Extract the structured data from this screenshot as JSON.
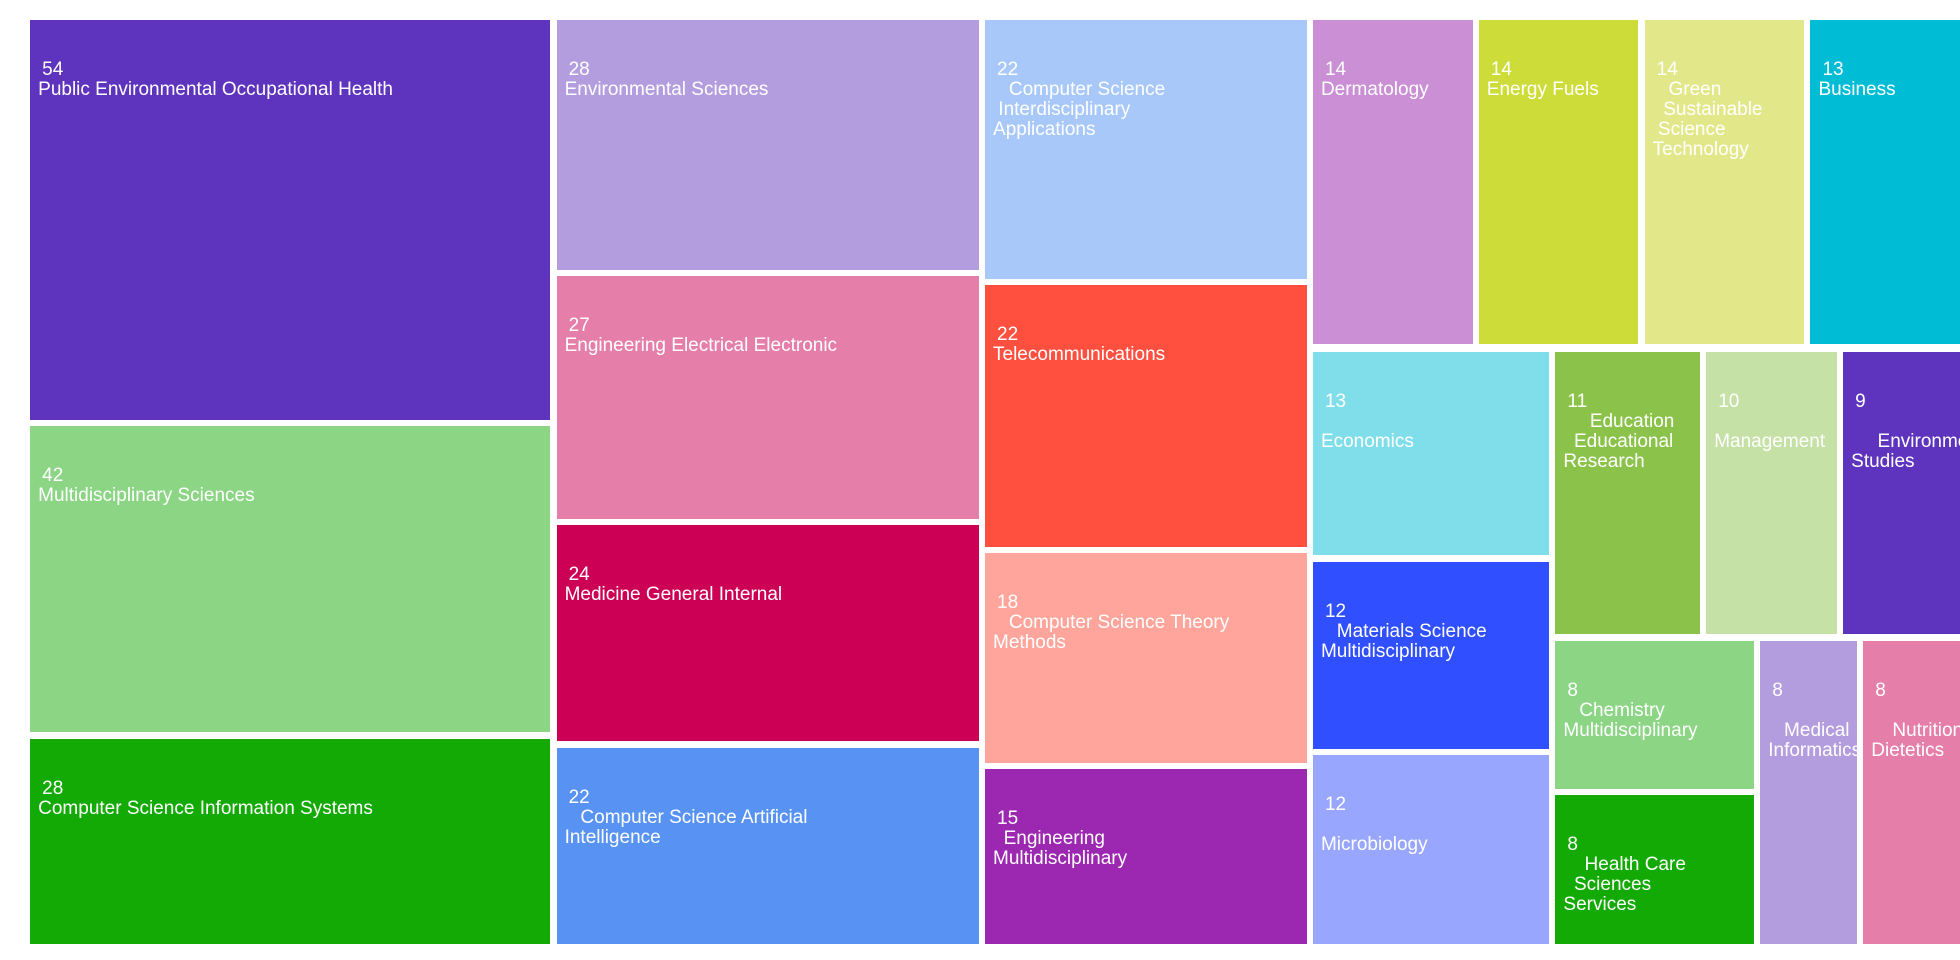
{
  "chart_data": {
    "type": "treemap",
    "title": "",
    "items": [
      {
        "label": "Public Environmental Occupational Health",
        "value": 54,
        "color": "#5e33be"
      },
      {
        "label": "Multidisciplinary Sciences",
        "value": 42,
        "color": "#8bd585"
      },
      {
        "label": "Computer Science Information Systems",
        "value": 28,
        "color": "#14aa05"
      },
      {
        "label": "Environmental Sciences",
        "value": 28,
        "color": "#b39ddf"
      },
      {
        "label": "Engineering Electrical Electronic",
        "value": 27,
        "color": "#e57ea8"
      },
      {
        "label": "Medicine General Internal",
        "value": 24,
        "color": "#cc0055"
      },
      {
        "label": "Computer Science Artificial Intelligence",
        "value": 22,
        "color": "#5893f3"
      },
      {
        "label": "Computer Science Interdisciplinary Applications",
        "value": 22,
        "color": "#a8c8fa"
      },
      {
        "label": "Telecommunications",
        "value": 22,
        "color": "#ff4f3f"
      },
      {
        "label": "Computer Science Theory Methods",
        "value": 18,
        "color": "#ffa59b"
      },
      {
        "label": "Engineering Multidisciplinary",
        "value": 15,
        "color": "#9c27b0"
      },
      {
        "label": "Dermatology",
        "value": 14,
        "color": "#ca8fd5"
      },
      {
        "label": "Energy Fuels",
        "value": 14,
        "color": "#cddc39"
      },
      {
        "label": "Green Sustainable Science Technology",
        "value": 14,
        "color": "#e2e88a"
      },
      {
        "label": "Business",
        "value": 13,
        "color": "#00bcd4"
      },
      {
        "label": "Economics",
        "value": 13,
        "color": "#80deea"
      },
      {
        "label": "Materials Science Multidisciplinary",
        "value": 12,
        "color": "#304ffe"
      },
      {
        "label": "Microbiology",
        "value": 12,
        "color": "#98a6fd"
      },
      {
        "label": "Education Educational Research",
        "value": 11,
        "color": "#8bc34a"
      },
      {
        "label": "Management",
        "value": 10,
        "color": "#c5e1a5"
      },
      {
        "label": "Environmental Studies",
        "value": 9,
        "color": "#5e33be"
      },
      {
        "label": "Chemistry Multidisciplinary",
        "value": 8,
        "color": "#8bd585"
      },
      {
        "label": "Health Care Sciences Services",
        "value": 8,
        "color": "#14aa05"
      },
      {
        "label": "Medical Informatics",
        "value": 8,
        "color": "#b39ddf"
      },
      {
        "label": "Nutrition Dietetics",
        "value": 8,
        "color": "#e57ea8"
      }
    ]
  }
}
